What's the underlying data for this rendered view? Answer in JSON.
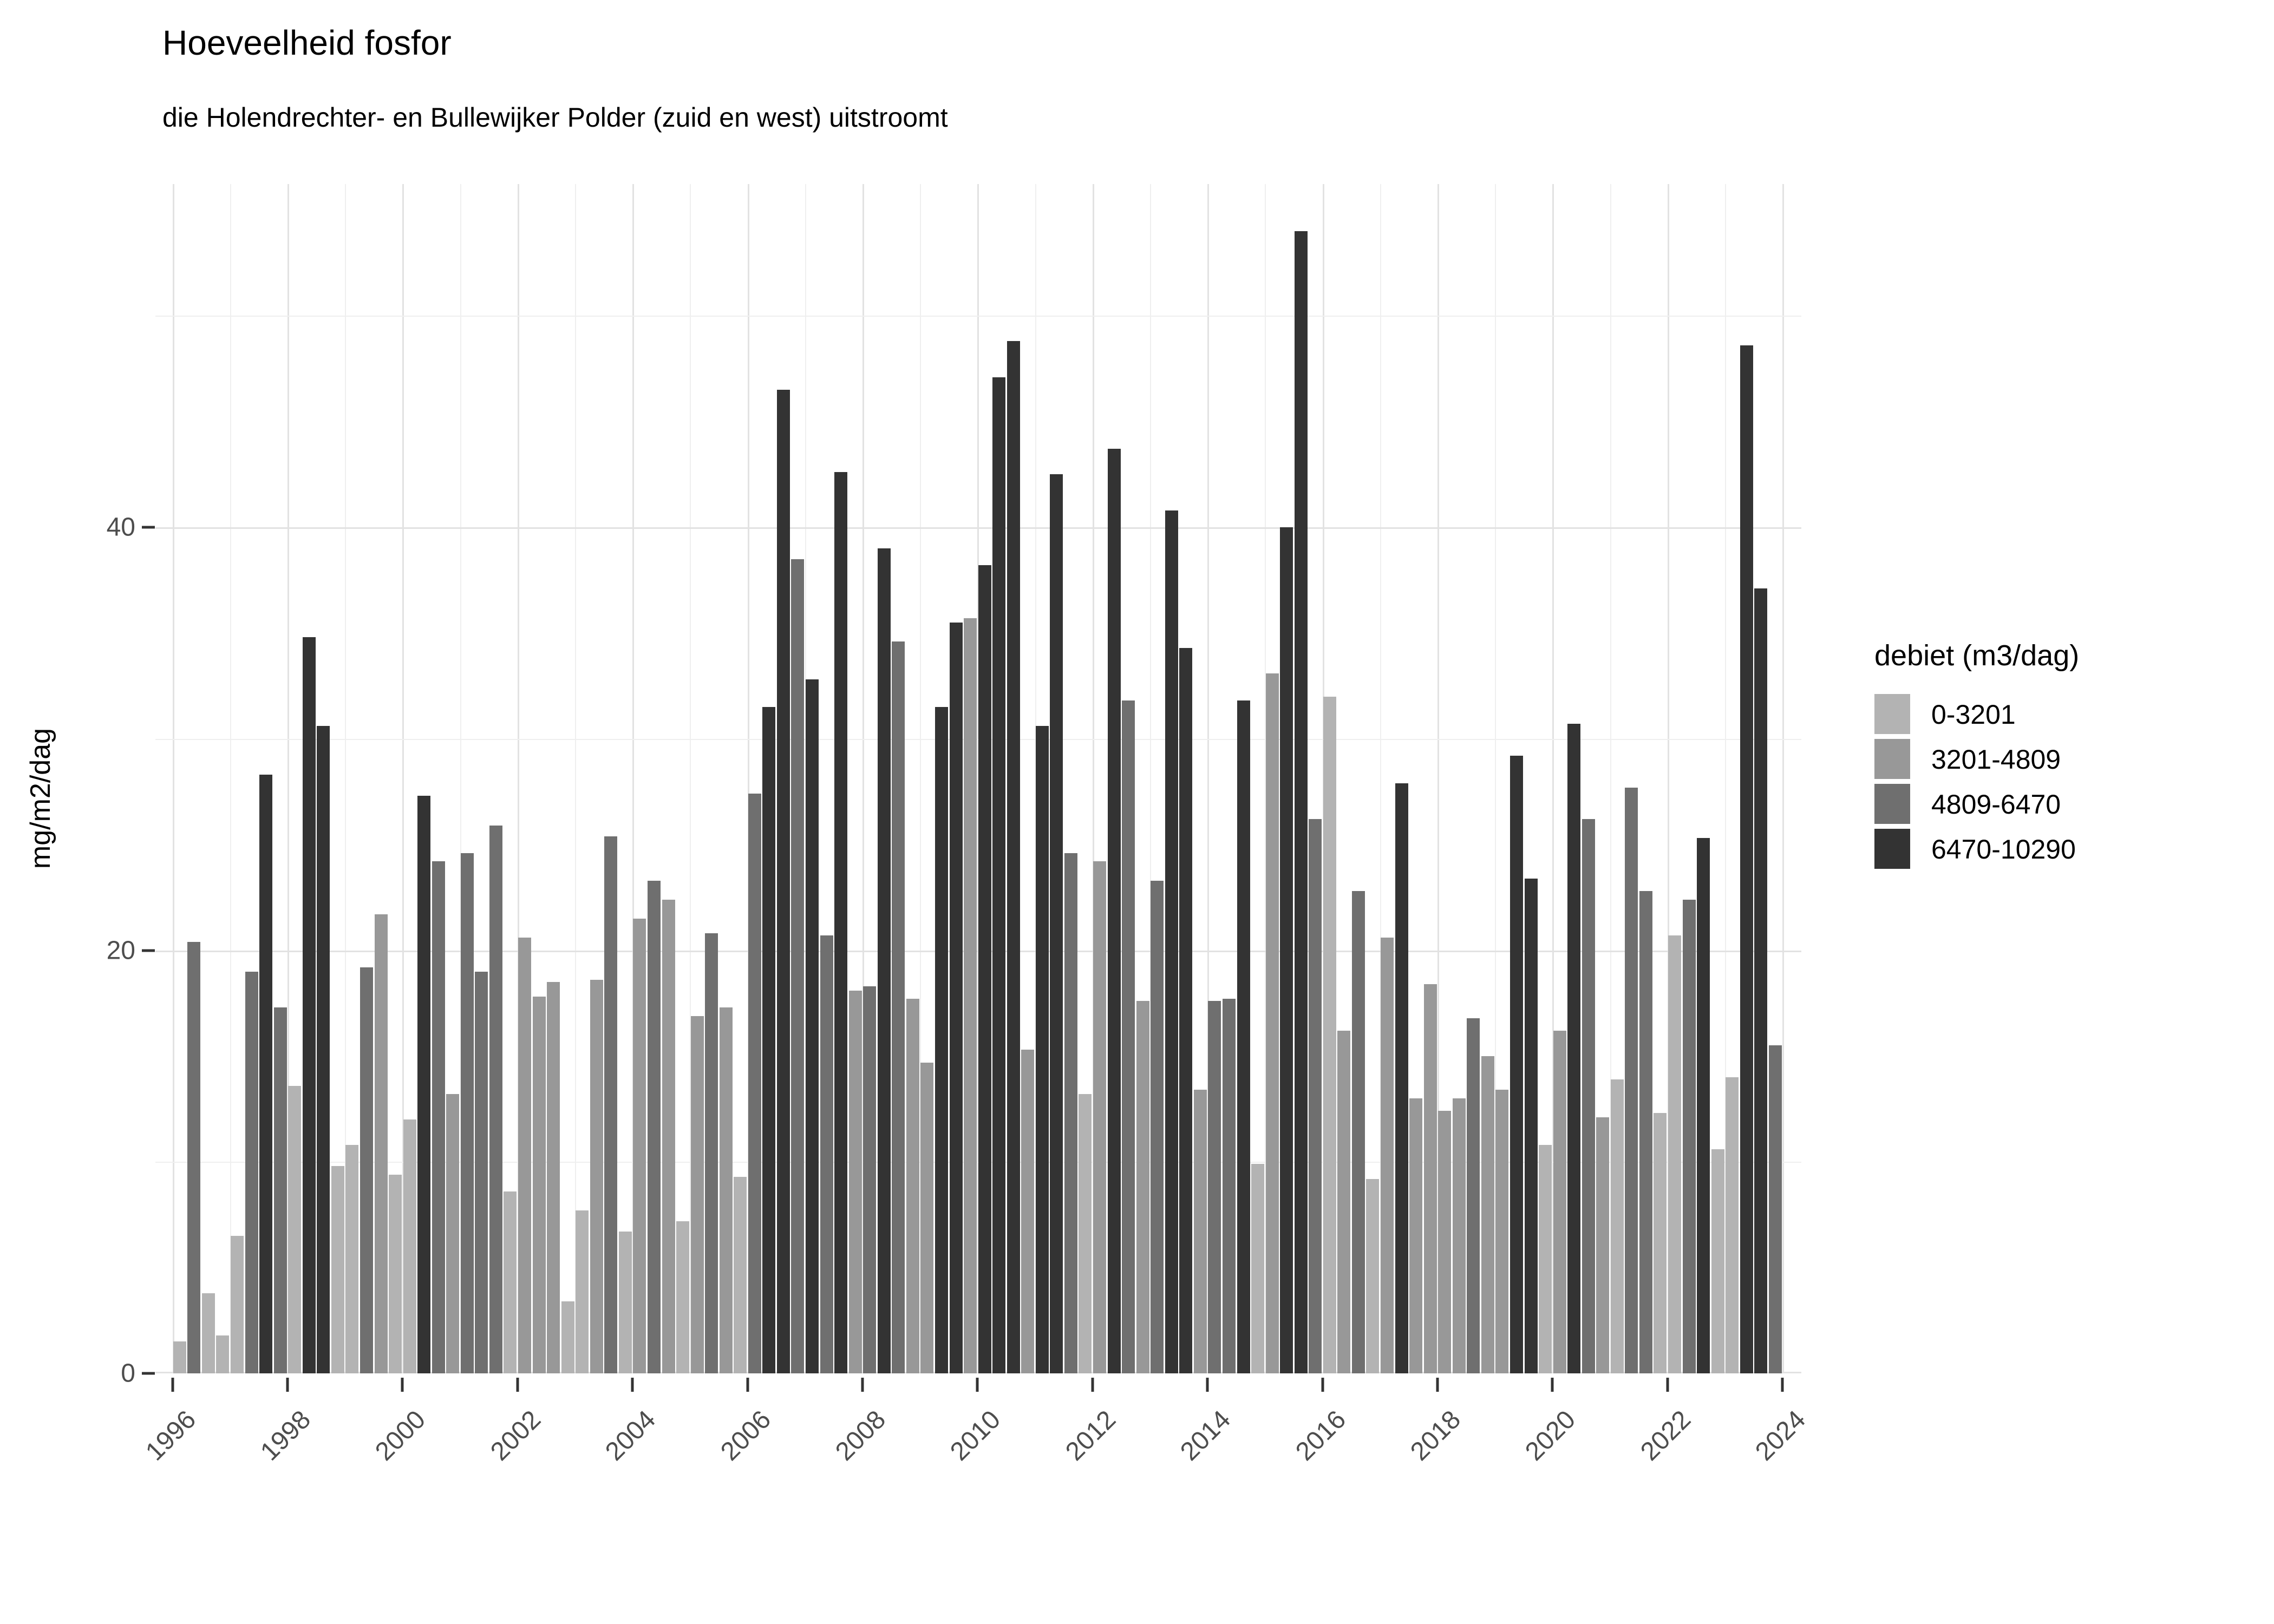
{
  "title": "Hoeveelheid fosfor",
  "subtitle": "die Holendrechter- en Bullewijker Polder (zuid en west) uitstroomt",
  "y_axis": {
    "title": "mg/m2/dag",
    "major_ticks": [
      0,
      20,
      40
    ],
    "minor_gridlines": [
      10,
      30,
      50
    ],
    "limit": [
      0,
      56
    ]
  },
  "x_axis": {
    "tick_years": [
      1996,
      1998,
      2000,
      2002,
      2004,
      2006,
      2008,
      2010,
      2012,
      2014,
      2016,
      2018,
      2020,
      2022,
      2024
    ],
    "gridline_years_start": 1996,
    "gridline_years_end": 2024
  },
  "legend": {
    "title": "debiet (m3/dag)",
    "items": [
      {
        "key": "L",
        "label": "0-3201",
        "color": "#B3B3B3"
      },
      {
        "key": "M",
        "label": "3201-4809",
        "color": "#989898"
      },
      {
        "key": "D",
        "label": "4809-6470",
        "color": "#6F6F6F"
      },
      {
        "key": "K",
        "label": "6470-10290",
        "color": "#333333"
      }
    ]
  },
  "chart_data": {
    "type": "bar",
    "title": "Hoeveelheid fosfor",
    "subtitle": "die Holendrechter- en Bullewijker Polder (zuid en west) uitstroomt",
    "xlabel": "",
    "ylabel": "mg/m2/dag",
    "ylim": [
      0,
      56
    ],
    "grid": "on",
    "legend_position": "right",
    "legend_title": "debiet (m3/dag)",
    "x_unit": "quarter",
    "flow_classes": {
      "L": {
        "label": "0-3201",
        "color": "#B3B3B3"
      },
      "M": {
        "label": "3201-4809",
        "color": "#989898"
      },
      "D": {
        "label": "4809-6470",
        "color": "#6F6F6F"
      },
      "K": {
        "label": "6470-10290",
        "color": "#333333"
      }
    },
    "bars": [
      {
        "year": 1996,
        "values": [
          1.5,
          20.4,
          3.8,
          1.8
        ],
        "flows": [
          "L",
          "D",
          "L",
          "L"
        ]
      },
      {
        "year": 1997,
        "values": [
          6.5,
          19.0,
          28.3,
          17.3
        ],
        "flows": [
          "L",
          "D",
          "K",
          "D"
        ]
      },
      {
        "year": 1998,
        "values": [
          13.6,
          34.8,
          30.6,
          9.8
        ],
        "flows": [
          "L",
          "K",
          "K",
          "L"
        ]
      },
      {
        "year": 1999,
        "values": [
          10.8,
          19.2,
          21.7,
          9.4
        ],
        "flows": [
          "L",
          "D",
          "M",
          "L"
        ]
      },
      {
        "year": 2000,
        "values": [
          12.0,
          27.3,
          24.2,
          13.2
        ],
        "flows": [
          "L",
          "K",
          "D",
          "M"
        ]
      },
      {
        "year": 2001,
        "values": [
          24.6,
          19.0,
          25.9,
          8.6
        ],
        "flows": [
          "D",
          "D",
          "D",
          "L"
        ]
      },
      {
        "year": 2002,
        "values": [
          20.6,
          17.8,
          18.5,
          3.4
        ],
        "flows": [
          "M",
          "M",
          "M",
          "L"
        ]
      },
      {
        "year": 2003,
        "values": [
          7.7,
          18.6,
          25.4,
          6.7
        ],
        "flows": [
          "L",
          "M",
          "D",
          "L"
        ]
      },
      {
        "year": 2004,
        "values": [
          21.5,
          23.3,
          22.4,
          7.2
        ],
        "flows": [
          "M",
          "D",
          "M",
          "L"
        ]
      },
      {
        "year": 2005,
        "values": [
          16.9,
          20.8,
          17.3,
          9.3
        ],
        "flows": [
          "M",
          "D",
          "M",
          "L"
        ]
      },
      {
        "year": 2006,
        "values": [
          27.4,
          31.5,
          46.5,
          38.5
        ],
        "flows": [
          "D",
          "K",
          "K",
          "D"
        ]
      },
      {
        "year": 2007,
        "values": [
          32.8,
          20.7,
          42.6,
          18.1
        ],
        "flows": [
          "K",
          "D",
          "K",
          "M"
        ]
      },
      {
        "year": 2008,
        "values": [
          18.3,
          39.0,
          34.6,
          17.7
        ],
        "flows": [
          "D",
          "K",
          "D",
          "M"
        ]
      },
      {
        "year": 2009,
        "values": [
          14.7,
          31.5,
          35.5,
          35.7
        ],
        "flows": [
          "M",
          "K",
          "K",
          "M"
        ]
      },
      {
        "year": 2010,
        "values": [
          38.2,
          47.1,
          48.8,
          15.3
        ],
        "flows": [
          "K",
          "K",
          "K",
          "M"
        ]
      },
      {
        "year": 2011,
        "values": [
          30.6,
          42.5,
          24.6,
          13.2
        ],
        "flows": [
          "K",
          "K",
          "D",
          "L"
        ]
      },
      {
        "year": 2012,
        "values": [
          24.2,
          43.7,
          31.8,
          17.6
        ],
        "flows": [
          "M",
          "K",
          "D",
          "M"
        ]
      },
      {
        "year": 2013,
        "values": [
          23.3,
          40.8,
          34.3,
          13.4
        ],
        "flows": [
          "D",
          "K",
          "K",
          "M"
        ]
      },
      {
        "year": 2014,
        "values": [
          17.6,
          17.7,
          31.8,
          9.9
        ],
        "flows": [
          "D",
          "D",
          "K",
          "L"
        ]
      },
      {
        "year": 2015,
        "values": [
          33.1,
          40.0,
          54.0,
          26.2
        ],
        "flows": [
          "M",
          "K",
          "K",
          "D"
        ]
      },
      {
        "year": 2016,
        "values": [
          32.0,
          16.2,
          22.8,
          9.2
        ],
        "flows": [
          "L",
          "M",
          "D",
          "L"
        ]
      },
      {
        "year": 2017,
        "values": [
          20.6,
          27.9,
          13.0,
          18.4
        ],
        "flows": [
          "M",
          "K",
          "M",
          "M"
        ]
      },
      {
        "year": 2018,
        "values": [
          12.4,
          13.0,
          16.8,
          15.0
        ],
        "flows": [
          "M",
          "M",
          "D",
          "M"
        ]
      },
      {
        "year": 2019,
        "values": [
          13.4,
          29.2,
          23.4,
          10.8
        ],
        "flows": [
          "M",
          "K",
          "K",
          "L"
        ]
      },
      {
        "year": 2020,
        "values": [
          16.2,
          30.7,
          26.2,
          12.1
        ],
        "flows": [
          "M",
          "K",
          "D",
          "M"
        ]
      },
      {
        "year": 2021,
        "values": [
          13.9,
          27.7,
          22.8,
          12.3
        ],
        "flows": [
          "L",
          "D",
          "D",
          "L"
        ]
      },
      {
        "year": 2022,
        "values": [
          20.7,
          22.4,
          25.3,
          10.6
        ],
        "flows": [
          "L",
          "D",
          "K",
          "L"
        ]
      },
      {
        "year": 2023,
        "values": [
          14.0,
          48.6,
          37.1,
          15.5
        ],
        "flows": [
          "L",
          "K",
          "K",
          "D"
        ]
      }
    ]
  }
}
